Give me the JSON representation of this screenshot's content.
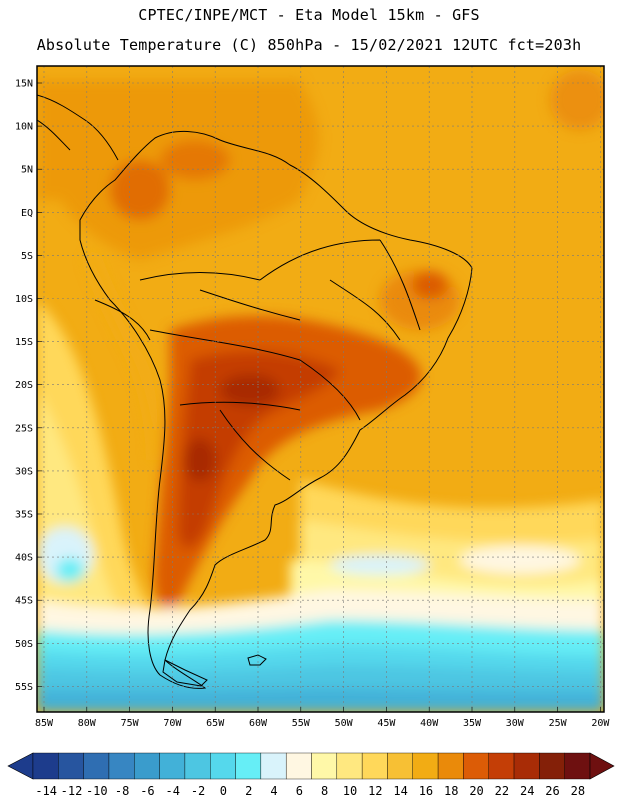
{
  "header": {
    "line1": "CPTEC/INPE/MCT -  Eta Model 15km - GFS",
    "line2": "Absolute Temperature (C) 850hPa - 15/02/2021 12UTC fct=203h"
  },
  "axes": {
    "lat_labels": [
      "15N",
      "10N",
      "5N",
      "EQ",
      "5S",
      "10S",
      "15S",
      "20S",
      "25S",
      "30S",
      "35S",
      "40S",
      "45S",
      "50S",
      "55S"
    ],
    "lon_labels": [
      "85W",
      "80W",
      "75W",
      "70W",
      "65W",
      "60W",
      "55W",
      "50W",
      "45W",
      "40W",
      "35W",
      "30W",
      "25W",
      "20W"
    ]
  },
  "colorbar": {
    "labels": [
      "-14",
      "-12",
      "-10",
      "-8",
      "-6",
      "-4",
      "-2",
      "0",
      "2",
      "4",
      "6",
      "8",
      "10",
      "12",
      "14",
      "16",
      "18",
      "20",
      "22",
      "24",
      "26",
      "28"
    ],
    "colors": [
      "#1d3c8c",
      "#27559f",
      "#2f6eb2",
      "#3786c2",
      "#3a9ccc",
      "#42b1d8",
      "#4dc6e2",
      "#55d8ec",
      "#66eef6",
      "#d9f3fb",
      "#fff7e2",
      "#fff8a8",
      "#ffe880",
      "#ffd85a",
      "#f7c034",
      "#f2ac14",
      "#ea8a0a",
      "#dc5c06",
      "#c43e06",
      "#a82c06",
      "#842008",
      "#6e1010"
    ]
  },
  "map": {
    "variable": "Absolute Temperature (C) 850hPa",
    "lat_range": [
      -58,
      17
    ],
    "lon_range": [
      -86,
      -19
    ]
  }
}
